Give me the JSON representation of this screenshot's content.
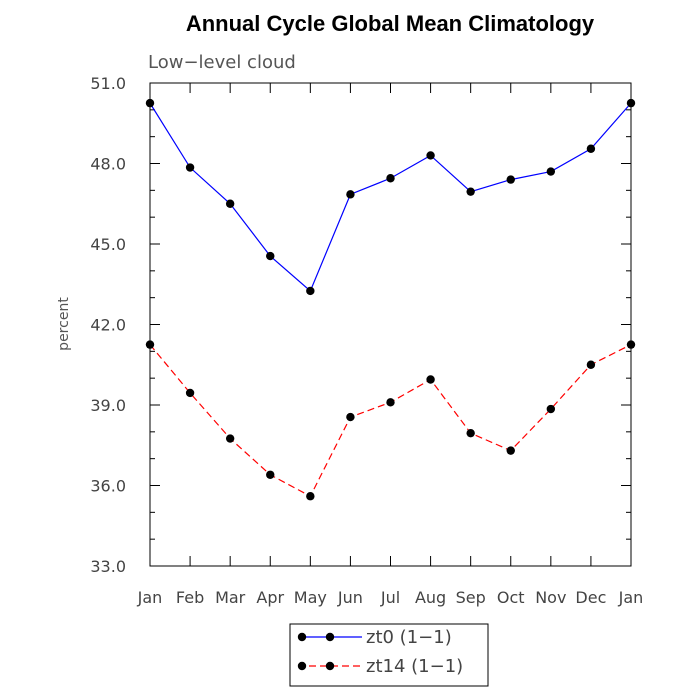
{
  "chart_data": {
    "type": "line",
    "title": "Annual Cycle Global Mean Climatology",
    "subtitle": "Low−level cloud",
    "xlabel": "",
    "ylabel": "percent",
    "categories": [
      "Jan",
      "Feb",
      "Mar",
      "Apr",
      "May",
      "Jun",
      "Jul",
      "Aug",
      "Sep",
      "Oct",
      "Nov",
      "Dec",
      "Jan"
    ],
    "ylim": [
      33.0,
      51.0
    ],
    "yticks": [
      33.0,
      36.0,
      39.0,
      42.0,
      45.0,
      48.0,
      51.0
    ],
    "ytick_labels": [
      "33.0",
      "36.0",
      "39.0",
      "42.0",
      "45.0",
      "48.0",
      "51.0"
    ],
    "series": [
      {
        "name": "zt0 (1−1)",
        "color": "#0000ff",
        "dash": "solid",
        "values": [
          50.25,
          47.85,
          46.5,
          44.55,
          43.25,
          46.85,
          47.45,
          48.3,
          46.95,
          47.4,
          47.7,
          48.55,
          50.25
        ]
      },
      {
        "name": "zt14 (1−1)",
        "color": "#ff0000",
        "dash": "dashed",
        "values": [
          41.25,
          39.45,
          37.75,
          36.4,
          35.6,
          38.55,
          39.1,
          39.95,
          37.95,
          37.3,
          38.85,
          40.5,
          41.25
        ]
      }
    ],
    "legend": "bottom",
    "grid": false
  }
}
